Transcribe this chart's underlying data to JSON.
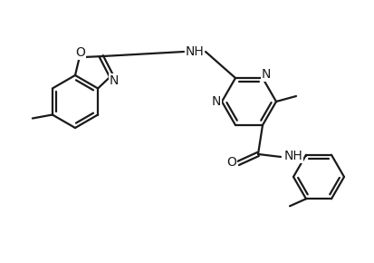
{
  "bg_color": "#ffffff",
  "line_color": "#1a1a1a",
  "line_width": 1.6,
  "font_size": 10,
  "figsize": [
    4.14,
    2.9
  ],
  "dpi": 100,
  "xlim": [
    0,
    414
  ],
  "ylim": [
    0,
    290
  ]
}
